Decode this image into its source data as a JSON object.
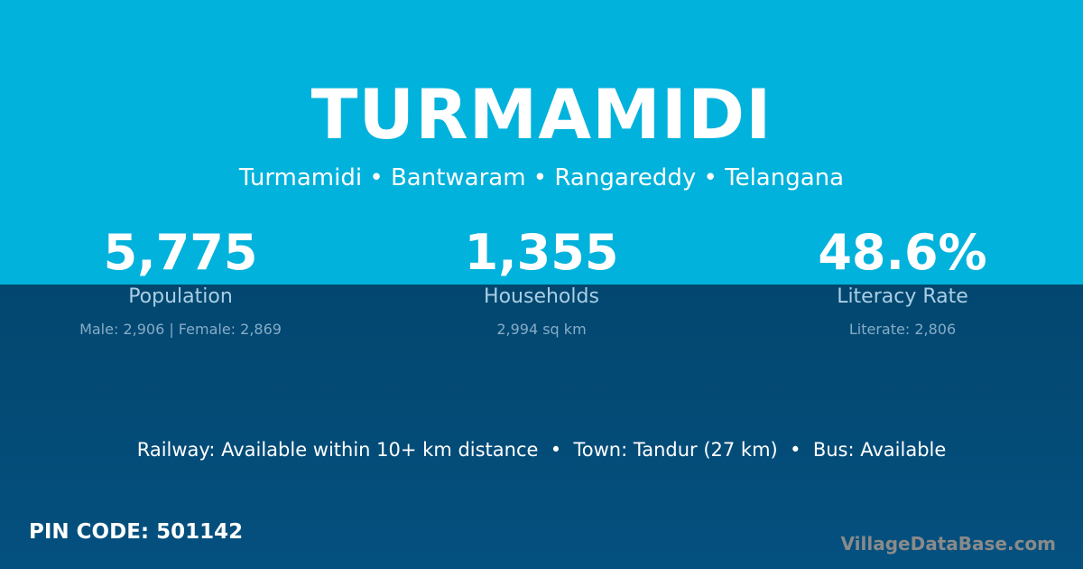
{
  "title": "TURMAMIDI",
  "subtitle": "Turmamidi • Bantwaram • Rangareddy • Telangana",
  "stats": [
    {
      "value": "5,775",
      "label": "Population",
      "sub": "Male: 2,906 | Female: 2,869"
    },
    {
      "value": "1,355",
      "label": "Households",
      "sub": "2,994 sq km"
    },
    {
      "value": "48.6%",
      "label": "Literacy Rate",
      "sub": "Literate: 2,806"
    }
  ],
  "info": "Railway: Available within 10+ km distance  •  Town: Tandur (27 km)  •  Bus: Available",
  "pin": "PIN CODE: 501142",
  "brand": "VillageDataBase.com",
  "colors": {
    "top": "#00b2dc",
    "bottom": "#064a78"
  }
}
